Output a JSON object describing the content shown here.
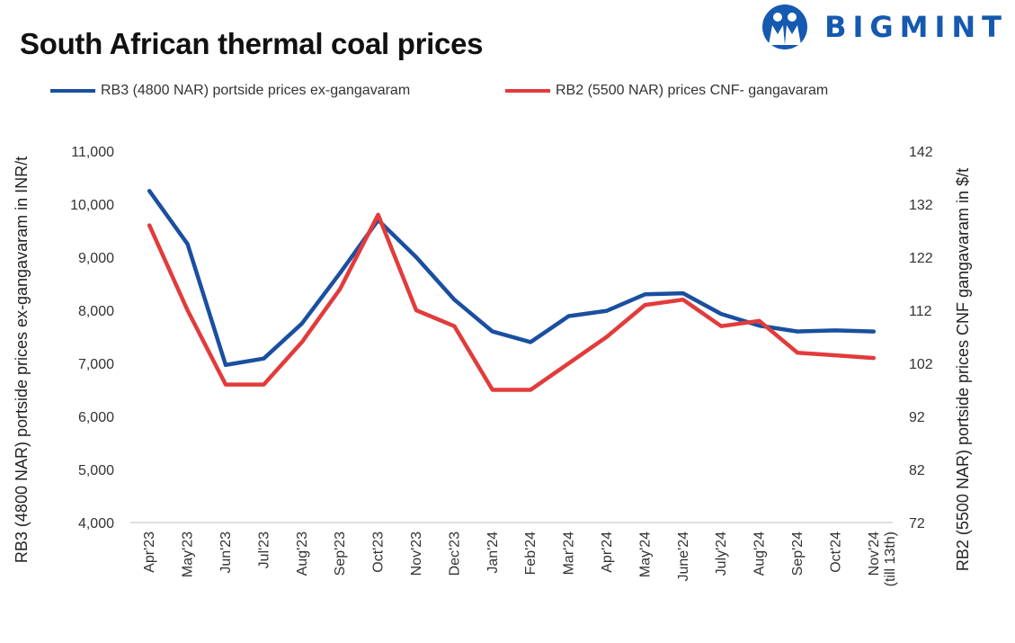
{
  "title": "South African thermal coal prices",
  "brand": {
    "name": "BIGMINT",
    "logo_icon": "bigmint-people-logo-icon",
    "color": "#1559b0"
  },
  "chart_data": {
    "type": "line",
    "title": "South African thermal coal prices",
    "x": [
      "Apr'23",
      "May'23",
      "Jun'23",
      "Jul'23",
      "Aug'23",
      "Sep'23",
      "Oct'23",
      "Nov'23",
      "Dec'23",
      "Jan'24",
      "Feb'24",
      "Mar'24",
      "Apr'24",
      "May'24",
      "June'24",
      "July'24",
      "Aug'24",
      "Sep'24",
      "Oct'24",
      "Nov'24 (till 13th)"
    ],
    "series": [
      {
        "name": "RB3 (4800 NAR) portside prices ex-gangavaram",
        "axis": "left",
        "color": "#1a4fa0",
        "values": [
          10250,
          9250,
          6970,
          7090,
          7750,
          8700,
          9700,
          9000,
          8200,
          7600,
          7400,
          7890,
          7990,
          8300,
          8320,
          7930,
          7710,
          7600,
          7620,
          7600
        ]
      },
      {
        "name": "RB2 (5500 NAR) prices CNF- gangavaram",
        "axis": "right",
        "color": "#e23b3b",
        "values": [
          128,
          112,
          98,
          98,
          106,
          116,
          130,
          112,
          109,
          97,
          97,
          102,
          107,
          113,
          114,
          109,
          110,
          104,
          103.5,
          103
        ]
      }
    ],
    "ylabel_left": "RB3 (4800 NAR) portside prices ex-gangavaram  in INR/t",
    "ylabel_right": "RB2 (5500 NAR) portside prices CNF  gangavaram  in $/t",
    "ylim_left": [
      4000,
      11000
    ],
    "ylim_right": [
      72,
      142
    ],
    "yticks_left": [
      "4,000",
      "5,000",
      "6,000",
      "7,000",
      "8,000",
      "9,000",
      "10,000",
      "11,000"
    ],
    "yticks_right": [
      "72",
      "82",
      "92",
      "102",
      "112",
      "122",
      "132",
      "142"
    ],
    "grid": false,
    "legend_position": "top"
  }
}
